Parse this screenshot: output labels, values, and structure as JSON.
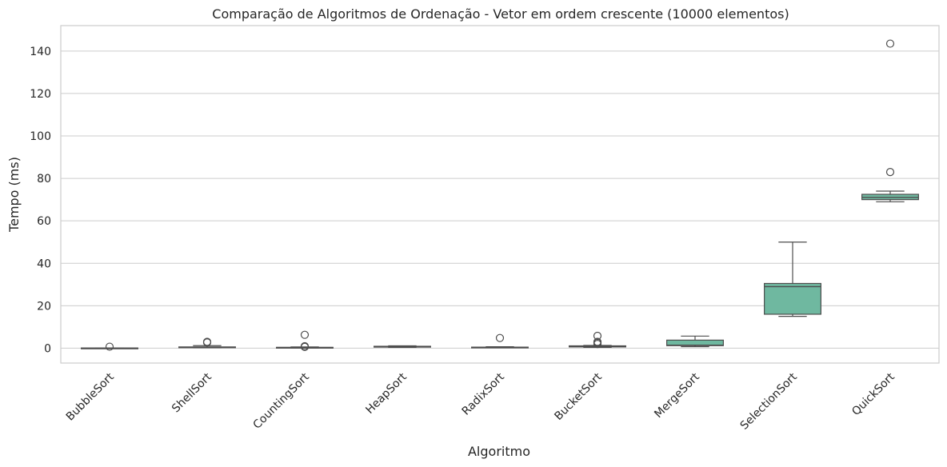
{
  "chart_data": {
    "type": "box",
    "title": "Comparação de Algoritmos de Ordenação - Vetor em ordem crescente (10000 elementos)",
    "xlabel": "Algoritmo",
    "ylabel": "Tempo (ms)",
    "ylim": [
      -7,
      152
    ],
    "yticks": [
      0,
      20,
      40,
      60,
      80,
      100,
      120,
      140
    ],
    "grid": "horizontal",
    "box_color": "#6fb8a0",
    "line_color": "#4d4d4d",
    "categories": [
      "BubbleSort",
      "ShellSort",
      "CountingSort",
      "HeapSort",
      "RadixSort",
      "BucketSort",
      "MergeSort",
      "SelectionSort",
      "QuickSort"
    ],
    "boxes": [
      {
        "min": 0.0,
        "q1": 0.0,
        "median": 0.0,
        "q3": 0.1,
        "max": 0.1,
        "outliers": [
          0.7
        ]
      },
      {
        "min": 0.2,
        "q1": 0.3,
        "median": 0.4,
        "q3": 0.6,
        "max": 1.2,
        "outliers": [
          2.7,
          3.0
        ]
      },
      {
        "min": 0.1,
        "q1": 0.2,
        "median": 0.3,
        "q3": 0.4,
        "max": 0.6,
        "outliers": [
          0.6,
          0.9,
          6.3
        ]
      },
      {
        "min": 0.4,
        "q1": 0.5,
        "median": 0.7,
        "q3": 0.9,
        "max": 1.1,
        "outliers": []
      },
      {
        "min": 0.2,
        "q1": 0.3,
        "median": 0.4,
        "q3": 0.5,
        "max": 0.7,
        "outliers": [
          4.8
        ]
      },
      {
        "min": 0.4,
        "q1": 0.6,
        "median": 0.9,
        "q3": 1.1,
        "max": 1.3,
        "outliers": [
          2.0,
          2.6,
          3.0,
          5.8
        ]
      },
      {
        "min": 0.7,
        "q1": 1.2,
        "median": 1.4,
        "q3": 3.8,
        "max": 5.7,
        "outliers": []
      },
      {
        "min": 15.0,
        "q1": 16.0,
        "median": 29.0,
        "q3": 30.5,
        "max": 50.0,
        "outliers": []
      },
      {
        "min": 69.0,
        "q1": 70.0,
        "median": 71.0,
        "q3": 72.5,
        "max": 74.0,
        "outliers": [
          83.0,
          143.5
        ]
      }
    ]
  }
}
